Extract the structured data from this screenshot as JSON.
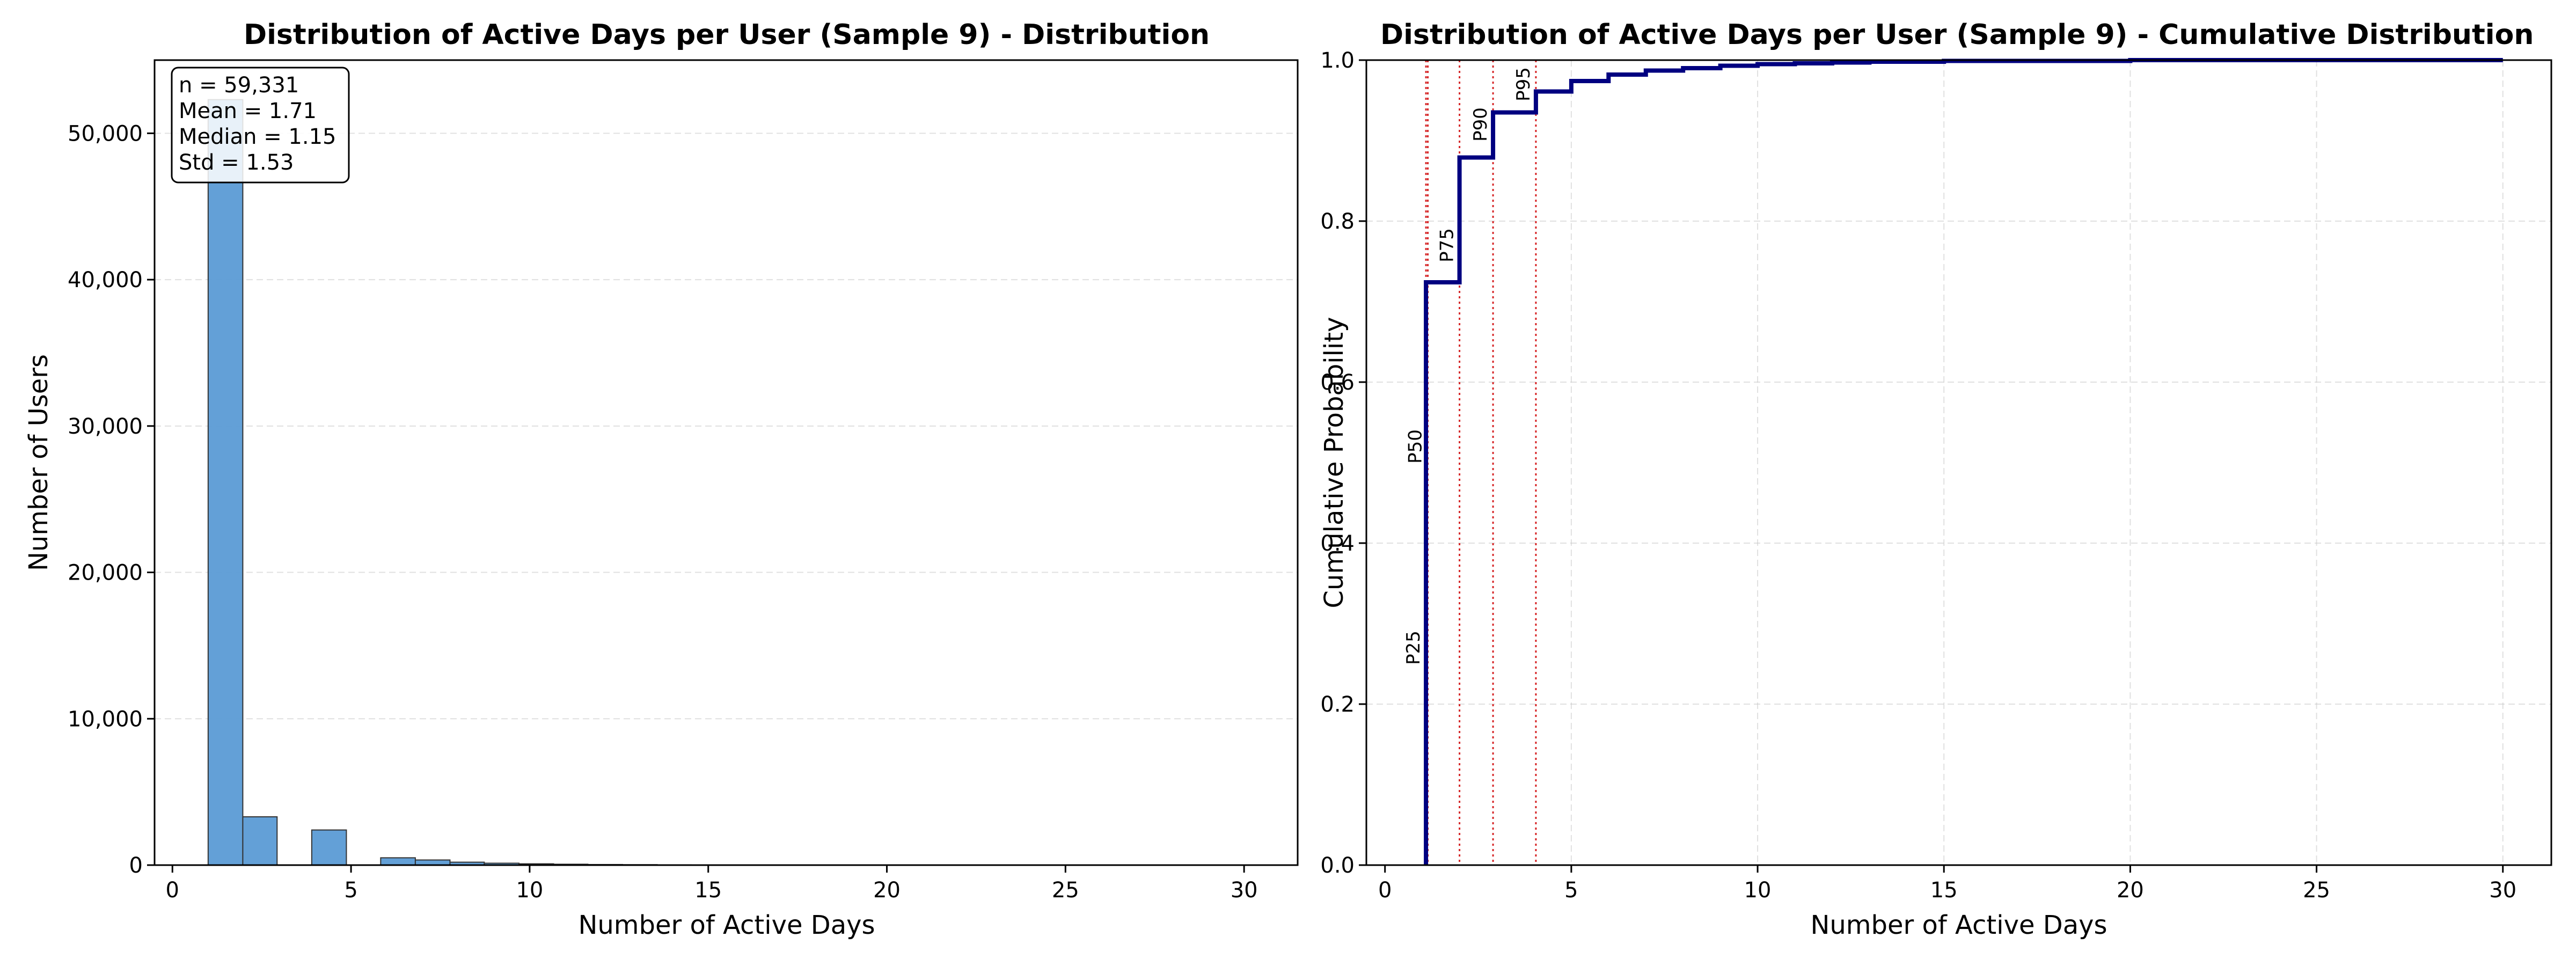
{
  "chart_data": [
    {
      "type": "bar",
      "title": "Distribution of Active Days per User (Sample 9) - Distribution",
      "xlabel": "Number of Active Days",
      "ylabel": "Number of Users",
      "xlim": [
        -0.5,
        31.5
      ],
      "ylim": [
        0,
        55000
      ],
      "xticks": [
        0,
        5,
        10,
        15,
        20,
        25,
        30
      ],
      "xtick_labels": [
        "0",
        "5",
        "10",
        "15",
        "20",
        "25",
        "30"
      ],
      "yticks": [
        0,
        10000,
        20000,
        30000,
        40000,
        50000
      ],
      "ytick_labels": [
        "0",
        "10,000",
        "20,000",
        "30,000",
        "40,000",
        "50,000"
      ],
      "grid": "y-dashed",
      "bar_color": "#5b9bd5",
      "bars": [
        {
          "x0": 1.0,
          "x1": 1.97,
          "value": 52300
        },
        {
          "x0": 1.97,
          "x1": 2.93,
          "value": 3300
        },
        {
          "x0": 2.93,
          "x1": 3.9,
          "value": 0
        },
        {
          "x0": 3.9,
          "x1": 4.87,
          "value": 2400
        },
        {
          "x0": 4.87,
          "x1": 5.83,
          "value": 0
        },
        {
          "x0": 5.83,
          "x1": 6.8,
          "value": 500
        },
        {
          "x0": 6.8,
          "x1": 7.77,
          "value": 350
        },
        {
          "x0": 7.77,
          "x1": 8.73,
          "value": 200
        },
        {
          "x0": 8.73,
          "x1": 9.7,
          "value": 130
        },
        {
          "x0": 9.7,
          "x1": 10.67,
          "value": 90
        },
        {
          "x0": 10.67,
          "x1": 11.63,
          "value": 60
        },
        {
          "x0": 11.63,
          "x1": 12.6,
          "value": 40
        },
        {
          "x0": 12.6,
          "x1": 13.57,
          "value": 30
        },
        {
          "x0": 13.57,
          "x1": 14.53,
          "value": 20
        },
        {
          "x0": 14.53,
          "x1": 15.5,
          "value": 15
        },
        {
          "x0": 15.5,
          "x1": 16.47,
          "value": 10
        },
        {
          "x0": 16.47,
          "x1": 17.43,
          "value": 8
        },
        {
          "x0": 17.43,
          "x1": 18.4,
          "value": 6
        },
        {
          "x0": 18.4,
          "x1": 19.37,
          "value": 5
        },
        {
          "x0": 19.37,
          "x1": 20.33,
          "value": 4
        },
        {
          "x0": 20.33,
          "x1": 21.3,
          "value": 3
        },
        {
          "x0": 21.3,
          "x1": 22.27,
          "value": 3
        },
        {
          "x0": 22.27,
          "x1": 23.23,
          "value": 2
        },
        {
          "x0": 23.23,
          "x1": 24.2,
          "value": 2
        },
        {
          "x0": 24.2,
          "x1": 25.17,
          "value": 2
        },
        {
          "x0": 25.17,
          "x1": 26.13,
          "value": 1
        },
        {
          "x0": 26.13,
          "x1": 27.1,
          "value": 1
        },
        {
          "x0": 27.1,
          "x1": 28.07,
          "value": 1
        },
        {
          "x0": 28.07,
          "x1": 29.03,
          "value": 1
        },
        {
          "x0": 29.03,
          "x1": 30.0,
          "value": 1
        }
      ],
      "stats_box": [
        "n = 59,331",
        "Mean = 1.71",
        "Median = 1.15",
        "Std = 1.53"
      ]
    },
    {
      "type": "line",
      "title": "Distribution of Active Days per User (Sample 9) - Cumulative Distribution",
      "xlabel": "Number of Active Days",
      "ylabel": "Cumulative Probability",
      "xlim": [
        -0.5,
        31.3
      ],
      "ylim": [
        0,
        1.0
      ],
      "xticks": [
        0,
        5,
        10,
        15,
        20,
        25,
        30
      ],
      "xtick_labels": [
        "0",
        "5",
        "10",
        "15",
        "20",
        "25",
        "30"
      ],
      "yticks": [
        0,
        0.2,
        0.4,
        0.6,
        0.8,
        1.0
      ],
      "ytick_labels": [
        "0.0",
        "0.2",
        "0.4",
        "0.6",
        "0.8",
        "1.0"
      ],
      "grid": "both-dashed",
      "line_color": "#000080",
      "step_points": [
        [
          1.1,
          0.0
        ],
        [
          1.1,
          0.724
        ],
        [
          2.0,
          0.724
        ],
        [
          2.0,
          0.879
        ],
        [
          2.9,
          0.879
        ],
        [
          2.9,
          0.935
        ],
        [
          4.05,
          0.935
        ],
        [
          4.05,
          0.961
        ],
        [
          5.0,
          0.961
        ],
        [
          5.0,
          0.974
        ],
        [
          6.0,
          0.974
        ],
        [
          6.0,
          0.982
        ],
        [
          7.0,
          0.982
        ],
        [
          7.0,
          0.987
        ],
        [
          8.0,
          0.987
        ],
        [
          8.0,
          0.99
        ],
        [
          9.0,
          0.99
        ],
        [
          9.0,
          0.993
        ],
        [
          10.0,
          0.993
        ],
        [
          10.0,
          0.995
        ],
        [
          11.0,
          0.995
        ],
        [
          11.0,
          0.996
        ],
        [
          12.0,
          0.996
        ],
        [
          12.0,
          0.997
        ],
        [
          13.0,
          0.997
        ],
        [
          13.0,
          0.998
        ],
        [
          15.0,
          0.998
        ],
        [
          15.0,
          0.999
        ],
        [
          20.0,
          0.999
        ],
        [
          20.0,
          1.0
        ],
        [
          30.0,
          1.0
        ]
      ],
      "percentile_color": "#d62728",
      "percentiles": [
        {
          "label": "P25",
          "x": 1.1,
          "label_y": 0.27
        },
        {
          "label": "P50",
          "x": 1.15,
          "label_y": 0.52
        },
        {
          "label": "P75",
          "x": 2.0,
          "label_y": 0.77
        },
        {
          "label": "P90",
          "x": 2.9,
          "label_y": 0.92
        },
        {
          "label": "P95",
          "x": 4.05,
          "label_y": 0.97
        }
      ]
    }
  ]
}
